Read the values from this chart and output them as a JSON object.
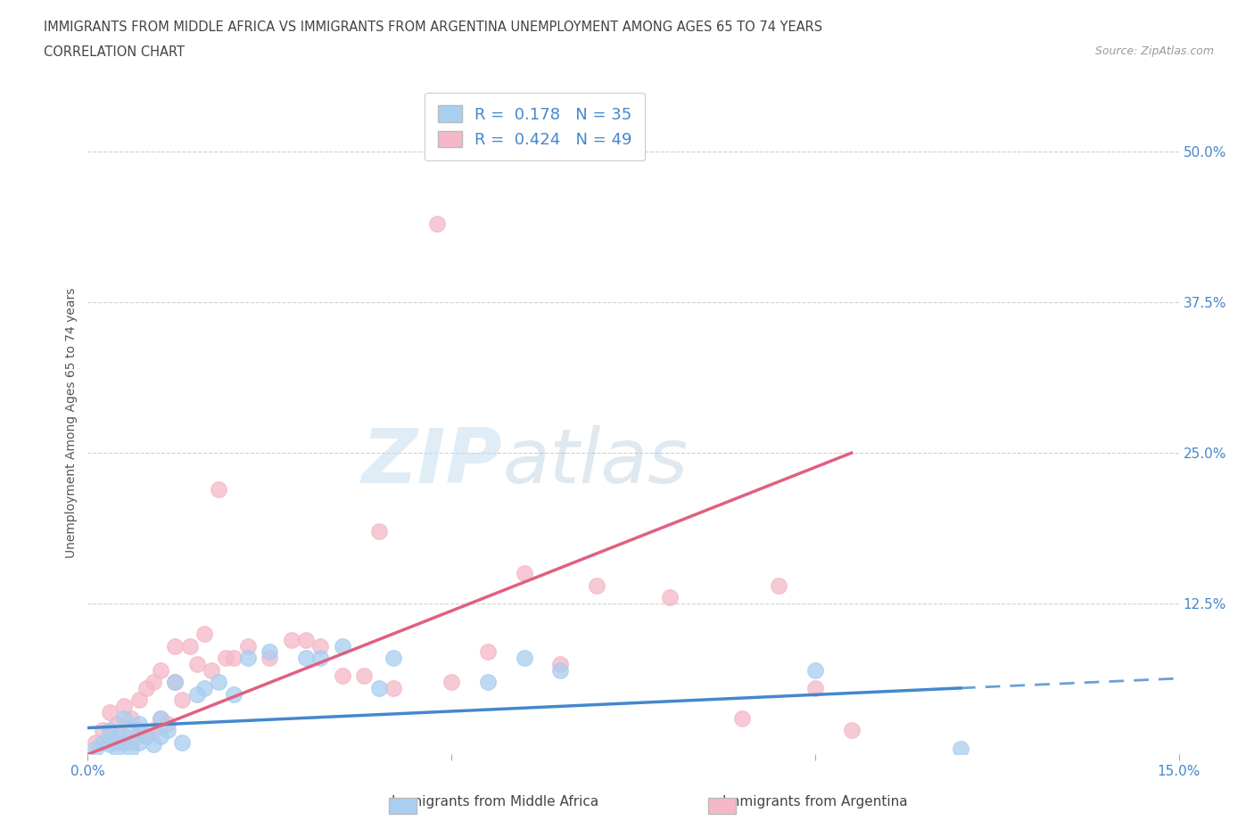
{
  "title_line1": "IMMIGRANTS FROM MIDDLE AFRICA VS IMMIGRANTS FROM ARGENTINA UNEMPLOYMENT AMONG AGES 65 TO 74 YEARS",
  "title_line2": "CORRELATION CHART",
  "source_text": "Source: ZipAtlas.com",
  "ylabel": "Unemployment Among Ages 65 to 74 years",
  "xlim": [
    0.0,
    0.15
  ],
  "ylim": [
    0.0,
    0.55
  ],
  "yticks_right": [
    0.0,
    0.125,
    0.25,
    0.375,
    0.5
  ],
  "yticklabels_right": [
    "",
    "12.5%",
    "25.0%",
    "37.5%",
    "50.0%"
  ],
  "grid_color": "#d0d0d0",
  "background_color": "#ffffff",
  "blue_color": "#a8cef0",
  "pink_color": "#f5b8c8",
  "blue_line_color": "#4488cc",
  "pink_line_color": "#e06080",
  "R_blue": 0.178,
  "N_blue": 35,
  "R_pink": 0.424,
  "N_pink": 49,
  "legend_label_blue": "Immigrants from Middle Africa",
  "legend_label_pink": "Immigrants from Argentina",
  "blue_scatter_x": [
    0.001,
    0.002,
    0.003,
    0.003,
    0.004,
    0.004,
    0.005,
    0.005,
    0.006,
    0.006,
    0.007,
    0.007,
    0.008,
    0.009,
    0.01,
    0.01,
    0.011,
    0.012,
    0.013,
    0.015,
    0.016,
    0.018,
    0.02,
    0.022,
    0.025,
    0.03,
    0.032,
    0.035,
    0.04,
    0.042,
    0.055,
    0.06,
    0.065,
    0.1,
    0.12
  ],
  "blue_scatter_y": [
    0.005,
    0.01,
    0.008,
    0.02,
    0.005,
    0.015,
    0.01,
    0.03,
    0.005,
    0.02,
    0.01,
    0.025,
    0.015,
    0.008,
    0.015,
    0.03,
    0.02,
    0.06,
    0.01,
    0.05,
    0.055,
    0.06,
    0.05,
    0.08,
    0.085,
    0.08,
    0.08,
    0.09,
    0.055,
    0.08,
    0.06,
    0.08,
    0.07,
    0.07,
    0.005
  ],
  "pink_scatter_x": [
    0.001,
    0.002,
    0.003,
    0.003,
    0.004,
    0.004,
    0.005,
    0.005,
    0.006,
    0.006,
    0.007,
    0.007,
    0.008,
    0.008,
    0.009,
    0.009,
    0.01,
    0.01,
    0.011,
    0.012,
    0.012,
    0.013,
    0.014,
    0.015,
    0.016,
    0.017,
    0.018,
    0.019,
    0.02,
    0.022,
    0.025,
    0.028,
    0.03,
    0.032,
    0.035,
    0.038,
    0.04,
    0.042,
    0.048,
    0.05,
    0.055,
    0.06,
    0.065,
    0.07,
    0.08,
    0.09,
    0.095,
    0.1,
    0.105
  ],
  "pink_scatter_y": [
    0.01,
    0.02,
    0.015,
    0.035,
    0.01,
    0.025,
    0.015,
    0.04,
    0.01,
    0.03,
    0.02,
    0.045,
    0.015,
    0.055,
    0.02,
    0.06,
    0.03,
    0.07,
    0.025,
    0.09,
    0.06,
    0.045,
    0.09,
    0.075,
    0.1,
    0.07,
    0.22,
    0.08,
    0.08,
    0.09,
    0.08,
    0.095,
    0.095,
    0.09,
    0.065,
    0.065,
    0.185,
    0.055,
    0.44,
    0.06,
    0.085,
    0.15,
    0.075,
    0.14,
    0.13,
    0.03,
    0.14,
    0.055,
    0.02
  ],
  "blue_line_x0": 0.0,
  "blue_line_x1": 0.12,
  "blue_line_xdash": 0.15,
  "blue_line_y0": 0.022,
  "blue_line_y1": 0.055,
  "blue_line_ydash": 0.063,
  "pink_line_x0": 0.0,
  "pink_line_x1": 0.105,
  "pink_line_y0": 0.0,
  "pink_line_y1": 0.25
}
